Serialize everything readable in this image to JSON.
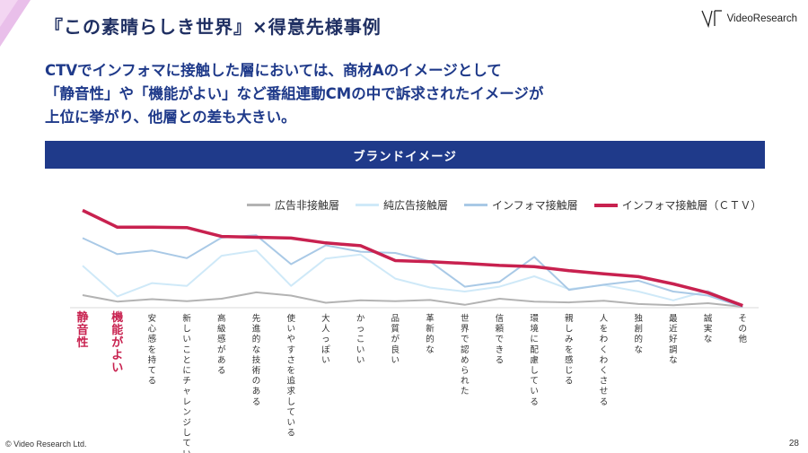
{
  "page": {
    "title": "『この素晴らしき世界』×得意先様事例",
    "logo_text": "VideoResearch",
    "headline": [
      "CTVでインフォマに接触した層においては、商材Aのイメージとして",
      "「静音性」や「機能がよい」など番組連動CMの中で訴求されたイメージが",
      "上位に挙がり、他層との差も大きい。"
    ],
    "banner": "ブランドイメージ",
    "footer_copy": "© Video Research Ltd.",
    "page_number": "28"
  },
  "colors": {
    "series": [
      "#b3b3b3",
      "#cfe9f8",
      "#a9c9e6",
      "#c8214f"
    ],
    "highlight_label": "#c8214f",
    "banner": "#1f3a8a"
  },
  "chart_data": {
    "type": "line",
    "legend_position": "top",
    "highlight_count": 2,
    "categories": [
      "静音性",
      "機能がよい",
      "安心感を持てる",
      "新しいことにチャレンジしている",
      "高級感がある",
      "先進的な技術のある",
      "使いやすさを追求している",
      "大人っぽい",
      "かっこいい",
      "品質が良い",
      "革新的な",
      "世界で認められた",
      "信頼できる",
      "環境に配慮している",
      "親しみを感じる",
      "人をわくわくさせる",
      "独創的な",
      "最近好調な",
      "誠実な",
      "その他"
    ],
    "ylim": [
      0,
      25
    ],
    "series": [
      {
        "name": "広告非接触層",
        "values": [
          2.9,
          1.3,
          1.9,
          1.4,
          2.0,
          3.6,
          2.8,
          1.0,
          1.6,
          1.4,
          1.7,
          0.5,
          2.0,
          1.3,
          1.1,
          1.5,
          0.7,
          0.4,
          0.9,
          0.0
        ]
      },
      {
        "name": "純広告接触層",
        "values": [
          10.2,
          2.6,
          5.9,
          5.2,
          12.7,
          14.0,
          5.2,
          12.0,
          13.0,
          7.0,
          4.8,
          3.8,
          5.0,
          7.6,
          4.4,
          5.4,
          3.8,
          1.6,
          4.0,
          0.0
        ]
      },
      {
        "name": "インフォマ接触層",
        "values": [
          17.1,
          13.1,
          14.0,
          12.1,
          17.2,
          17.8,
          10.6,
          15.3,
          13.7,
          13.4,
          11.3,
          5.0,
          6.2,
          12.4,
          4.2,
          5.5,
          6.5,
          3.8,
          2.8,
          0.0
        ]
      },
      {
        "name": "インフォマ接触層（ＣＴＶ）",
        "values": [
          24.0,
          19.8,
          19.8,
          19.7,
          17.5,
          17.3,
          17.1,
          15.9,
          15.2,
          11.5,
          11.2,
          10.8,
          10.3,
          10.0,
          9.0,
          8.2,
          7.5,
          5.7,
          3.5,
          0.3
        ]
      }
    ]
  }
}
